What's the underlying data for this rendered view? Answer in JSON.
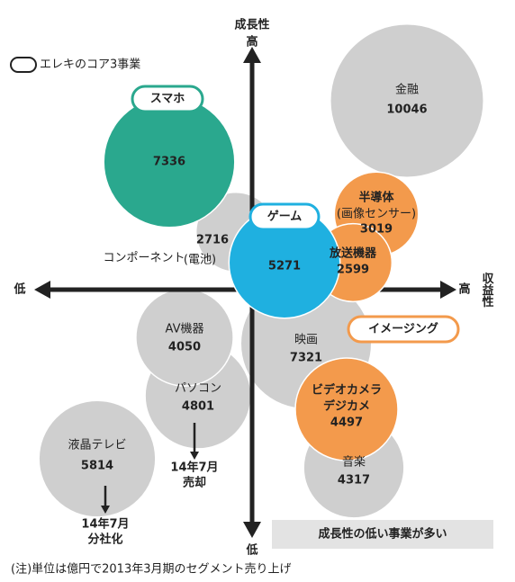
{
  "legend": "エレキのコア3事業",
  "axes": {
    "y_title": "成長性",
    "y_high": "高",
    "y_low": "低",
    "x_title": "収益性",
    "x_high": "高",
    "x_low": "低"
  },
  "bubbles": [
    {
      "name": "金融",
      "value": 10046,
      "color": "#cfcfcf"
    },
    {
      "name": "映画",
      "value": 7321,
      "color": "#cfcfcf"
    },
    {
      "name": "液晶テレビ",
      "value": 5814,
      "color": "#cfcfcf"
    },
    {
      "name": "パソコン",
      "value": 4801,
      "color": "#cfcfcf"
    },
    {
      "name": "AV機器",
      "value": 4050,
      "color": "#cfcfcf"
    },
    {
      "name": "音楽",
      "value": 4317,
      "color": "#cfcfcf"
    },
    {
      "name": "コンポーネント",
      "sub": "(電池)",
      "value": 2716,
      "color": "#cfcfcf"
    },
    {
      "value": 7336,
      "color": "#2aa88e"
    },
    {
      "name": "ビデオカメラ",
      "name2": "デジカメ",
      "value": 4497,
      "color": "#f39a4c"
    },
    {
      "name": "半導体",
      "sub": "(画像センサー)",
      "value": 3019,
      "color": "#f39a4c"
    },
    {
      "name": "放送機器",
      "value": 2599,
      "color": "#f39a4c"
    },
    {
      "value": 5271,
      "color": "#1fb0e0"
    }
  ],
  "tags": [
    "スマホ",
    "ゲーム",
    "イメージング"
  ],
  "notes": [
    [
      "14年7月",
      "売却"
    ],
    [
      "14年7月",
      "分社化"
    ]
  ],
  "banner": "成長性の低い事業が多い",
  "footnote": "(注)単位は億円で2013年3月期のセグメント売り上げ"
}
